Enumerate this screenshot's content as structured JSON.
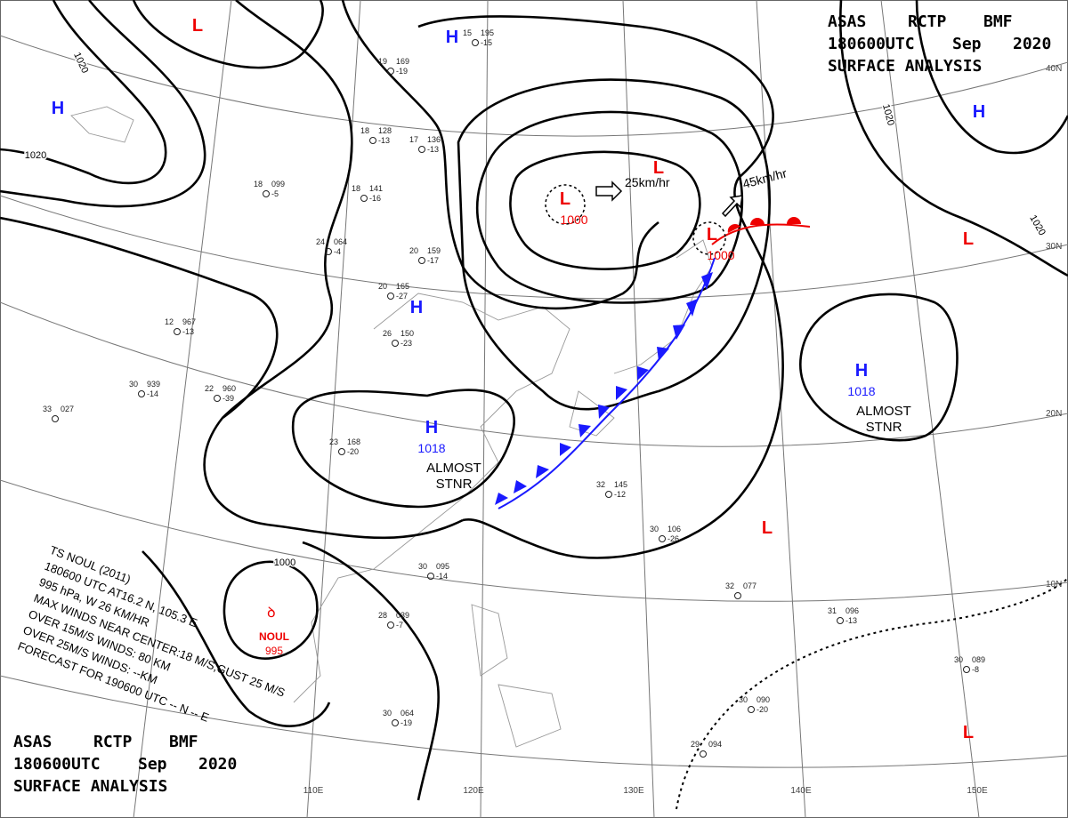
{
  "header": {
    "agency": "ASAS",
    "station": "RCTP",
    "office": "BMF",
    "time": "180600UTC",
    "month": "Sep",
    "year": 2020,
    "title": "SURFACE ANALYSIS"
  },
  "pressure_systems": [
    {
      "symbol": "H"
    },
    {
      "symbol": "L"
    },
    {
      "symbol": "H"
    },
    {
      "symbol": "L",
      "pressure": 1000
    },
    {
      "symbol": "L"
    },
    {
      "symbol": "H"
    },
    {
      "symbol": "L",
      "pressure": 1000
    },
    {
      "symbol": "L"
    },
    {
      "symbol": "H"
    },
    {
      "symbol": "H",
      "pressure": 1018,
      "status": [
        "ALMOST",
        "STNR"
      ]
    },
    {
      "symbol": "H",
      "pressure": 1018,
      "status": [
        "ALMOST",
        "STNR"
      ]
    },
    {
      "symbol": "L"
    },
    {
      "symbol": "L"
    }
  ],
  "motions": [
    "25km/hr",
    "45km/hr"
  ],
  "isobar_labels": [
    1020,
    1020,
    1020,
    1020,
    1000
  ],
  "longitudes": [
    "110E",
    "120E",
    "130E",
    "140E",
    "150E"
  ],
  "latitudes": [
    "40N",
    "30N",
    "20N",
    "10N"
  ],
  "typhoon": {
    "name": "NOUL",
    "pressure": 995,
    "bulletin": [
      "TS NOUL (2011)",
      "180600 UTC AT16.2 N, 105.3 E",
      "995 hPa, W 26 KM/HR",
      "MAX WINDS NEAR CENTER:18 M/S,GUST 25 M/S",
      "OVER 15M/S WINDS: 80 KM",
      "OVER 25M/S WINDS: --KM",
      "FORECAST FOR 190600 UTC -- N -- E"
    ]
  },
  "stations": [
    {
      "t": 15,
      "p": "195",
      "td": -15
    },
    {
      "t": 19,
      "p": "169",
      "td": -19
    },
    {
      "t": 18,
      "p": "128",
      "td": -13
    },
    {
      "t": 17,
      "p": "136",
      "td": -13
    },
    {
      "t": 18,
      "p": "099",
      "td": -5
    },
    {
      "t": 18,
      "p": "141",
      "td": -16
    },
    {
      "t": 24,
      "p": "064",
      "td": -4
    },
    {
      "t": 20,
      "p": "159",
      "td": -17
    },
    {
      "t": 20,
      "p": "165",
      "td": -27
    },
    {
      "t": 12,
      "p": "967",
      "td": -13
    },
    {
      "t": 30,
      "p": "939",
      "td": -14
    },
    {
      "t": 22,
      "p": "960",
      "td": -39
    },
    {
      "t": 26,
      "p": "150",
      "td": -23
    },
    {
      "t": 23,
      "p": "168",
      "td": -20
    },
    {
      "t": 30,
      "p": "095",
      "td": -14
    },
    {
      "t": 28,
      "p": "039",
      "td": -7
    },
    {
      "t": 30,
      "p": "064",
      "td": -19
    },
    {
      "t": 32,
      "p": "077"
    },
    {
      "t": 30,
      "p": "106",
      "td": -26
    },
    {
      "t": 31,
      "p": "096",
      "td": -13
    },
    {
      "t": 30,
      "p": "090",
      "td": -20
    },
    {
      "t": 30,
      "p": "089",
      "td": -8
    },
    {
      "t": 29,
      "p": "094"
    },
    {
      "t": 33,
      "p": "027"
    },
    {
      "t": 32,
      "p": "145",
      "td": -12
    }
  ]
}
